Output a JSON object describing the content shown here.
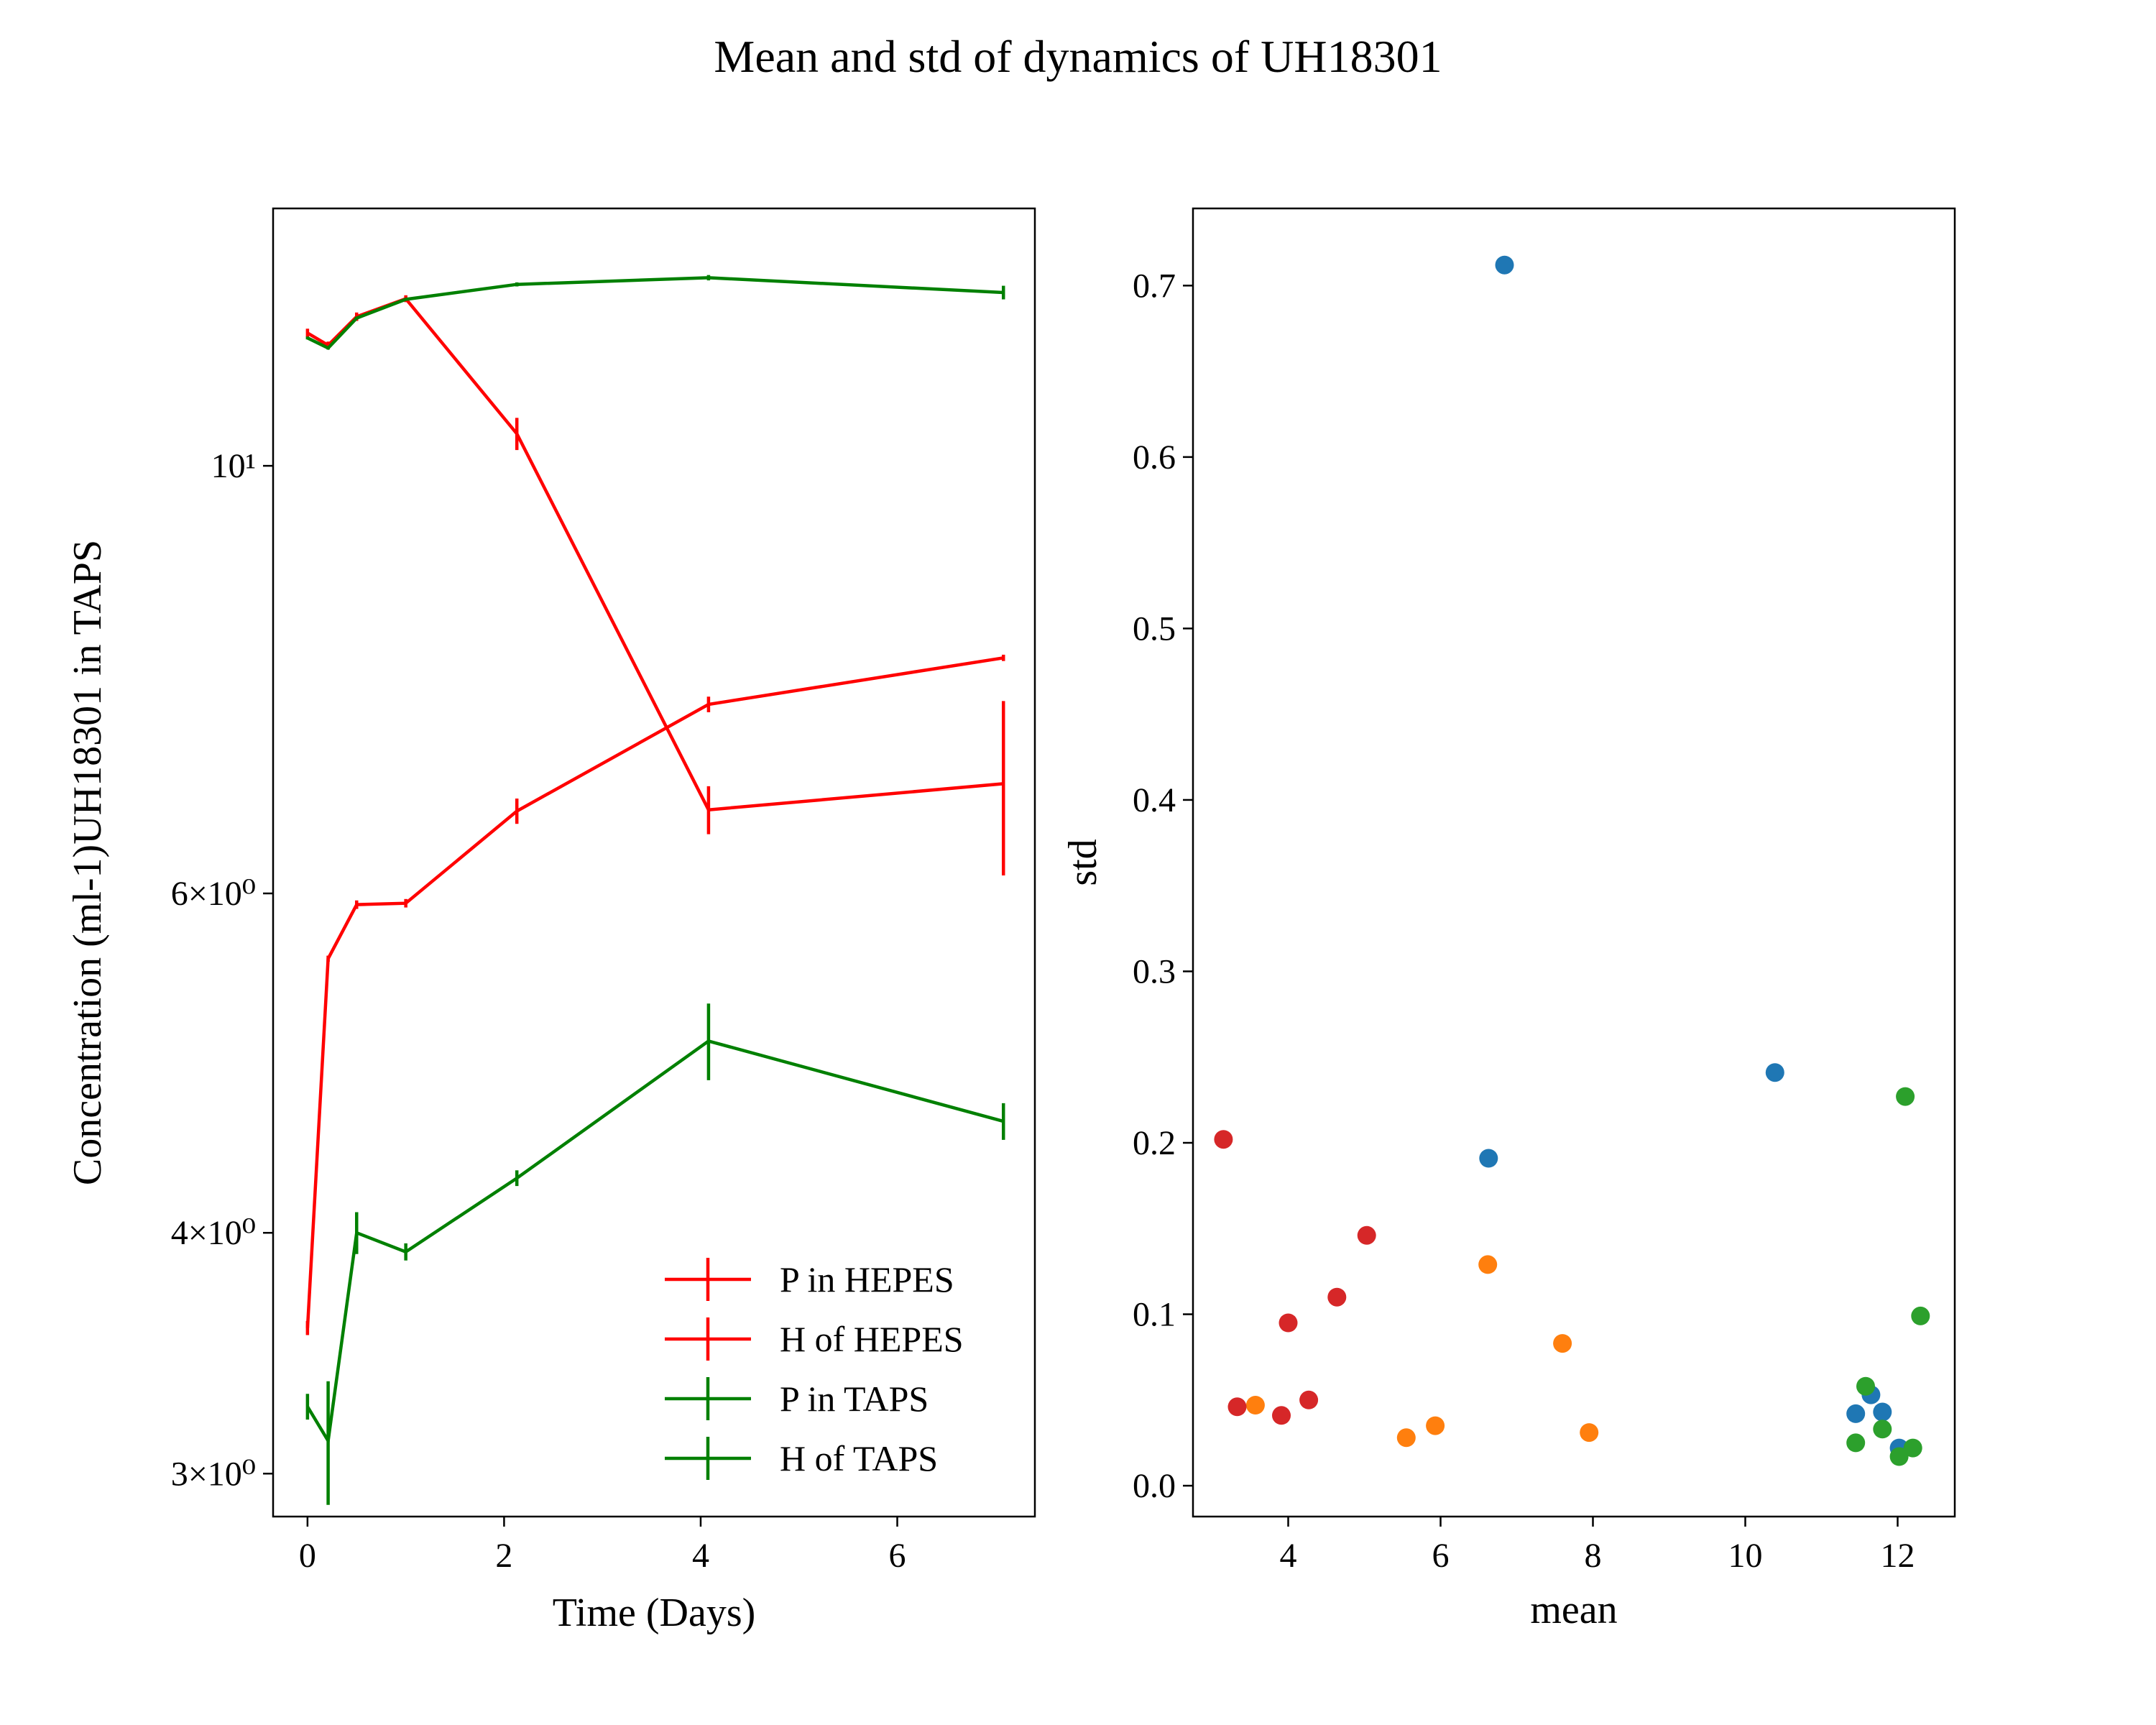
{
  "figure": {
    "title": "Mean and std of dynamics of UH18301"
  },
  "chart_data": [
    {
      "type": "line",
      "title": "",
      "xlabel": "Time (Days)",
      "ylabel": "Concentration (ml-1)UH18301 in TAPS",
      "yscale": "log",
      "xlim": [
        -0.35,
        7.4
      ],
      "ylim": [
        2.85,
        13.6
      ],
      "xticks": [
        {
          "value": 0,
          "label": "0"
        },
        {
          "value": 2,
          "label": "2"
        },
        {
          "value": 4,
          "label": "4"
        },
        {
          "value": 6,
          "label": "6"
        }
      ],
      "yticks": [
        {
          "value": 3,
          "label": "3×10⁰"
        },
        {
          "value": 4,
          "label": "4×10⁰"
        },
        {
          "value": 6,
          "label": "6×10⁰"
        },
        {
          "value": 10,
          "label": "10¹"
        }
      ],
      "legend_position": "lower-right",
      "series": [
        {
          "name": "P in HEPES",
          "color": "#ff0000",
          "x": [
            0,
            0.21,
            0.5,
            1,
            2.13,
            4.08,
            7.08
          ],
          "y": [
            3.57,
            5.55,
            5.92,
            5.93,
            6.62,
            7.52,
            7.95
          ],
          "err": [
            0.03,
            0.02,
            0.03,
            0.03,
            0.1,
            0.07,
            0.03
          ]
        },
        {
          "name": "H of HEPES",
          "color": "#ff0000",
          "x": [
            0,
            0.21,
            0.5,
            1,
            2.13,
            4.08,
            7.08
          ],
          "y": [
            11.72,
            11.55,
            11.95,
            12.21,
            10.39,
            6.63,
            6.84
          ],
          "err": [
            0.06,
            0.05,
            0.06,
            0.05,
            0.2,
            0.19,
            0.71
          ]
        },
        {
          "name": "P in TAPS",
          "color": "#008000",
          "x": [
            0,
            0.21,
            0.5,
            1,
            2.13,
            4.08,
            7.08
          ],
          "y": [
            3.25,
            3.12,
            4.0,
            3.91,
            4.27,
            5.03,
            4.57
          ],
          "err": [
            0.05,
            0.23,
            0.1,
            0.04,
            0.04,
            0.23,
            0.1
          ]
        },
        {
          "name": "H of TAPS",
          "color": "#008000",
          "x": [
            0,
            0.21,
            0.5,
            1,
            2.13,
            4.08,
            7.08
          ],
          "y": [
            11.65,
            11.51,
            11.93,
            12.2,
            12.42,
            12.52,
            12.3
          ],
          "err": [
            0.02,
            0.02,
            0.02,
            0.02,
            0.03,
            0.04,
            0.1
          ]
        }
      ]
    },
    {
      "type": "scatter",
      "title": "",
      "xlabel": "mean",
      "ylabel": "std",
      "xlim": [
        2.75,
        12.75
      ],
      "ylim": [
        -0.018,
        0.745
      ],
      "xticks": [
        {
          "value": 4,
          "label": "4"
        },
        {
          "value": 6,
          "label": "6"
        },
        {
          "value": 8,
          "label": "8"
        },
        {
          "value": 10,
          "label": "10"
        },
        {
          "value": 12,
          "label": "12"
        }
      ],
      "yticks": [
        {
          "value": 0.0,
          "label": "0.0"
        },
        {
          "value": 0.1,
          "label": "0.1"
        },
        {
          "value": 0.2,
          "label": "0.2"
        },
        {
          "value": 0.3,
          "label": "0.3"
        },
        {
          "value": 0.4,
          "label": "0.4"
        },
        {
          "value": 0.5,
          "label": "0.5"
        },
        {
          "value": 0.6,
          "label": "0.6"
        },
        {
          "value": 0.7,
          "label": "0.7"
        }
      ],
      "series": [
        {
          "color": "#1f77b4",
          "x": [
            6.84,
            10.39,
            6.63,
            11.65,
            11.8,
            11.45,
            12.02
          ],
          "y": [
            0.712,
            0.241,
            0.191,
            0.053,
            0.043,
            0.042,
            0.022
          ]
        },
        {
          "color": "#ff7f0e",
          "x": [
            6.62,
            7.6,
            3.57,
            5.55,
            5.93,
            7.95
          ],
          "y": [
            0.129,
            0.083,
            0.047,
            0.028,
            0.035,
            0.031
          ]
        },
        {
          "color": "#d62728",
          "x": [
            3.15,
            5.03,
            4.64,
            4.0,
            3.33,
            3.91,
            4.27
          ],
          "y": [
            0.202,
            0.146,
            0.11,
            0.095,
            0.046,
            0.041,
            0.05
          ]
        },
        {
          "color": "#2ca02c",
          "x": [
            12.1,
            12.3,
            11.58,
            11.8,
            11.45,
            12.02,
            12.2
          ],
          "y": [
            0.227,
            0.099,
            0.058,
            0.033,
            0.025,
            0.017,
            0.022
          ]
        }
      ]
    }
  ]
}
